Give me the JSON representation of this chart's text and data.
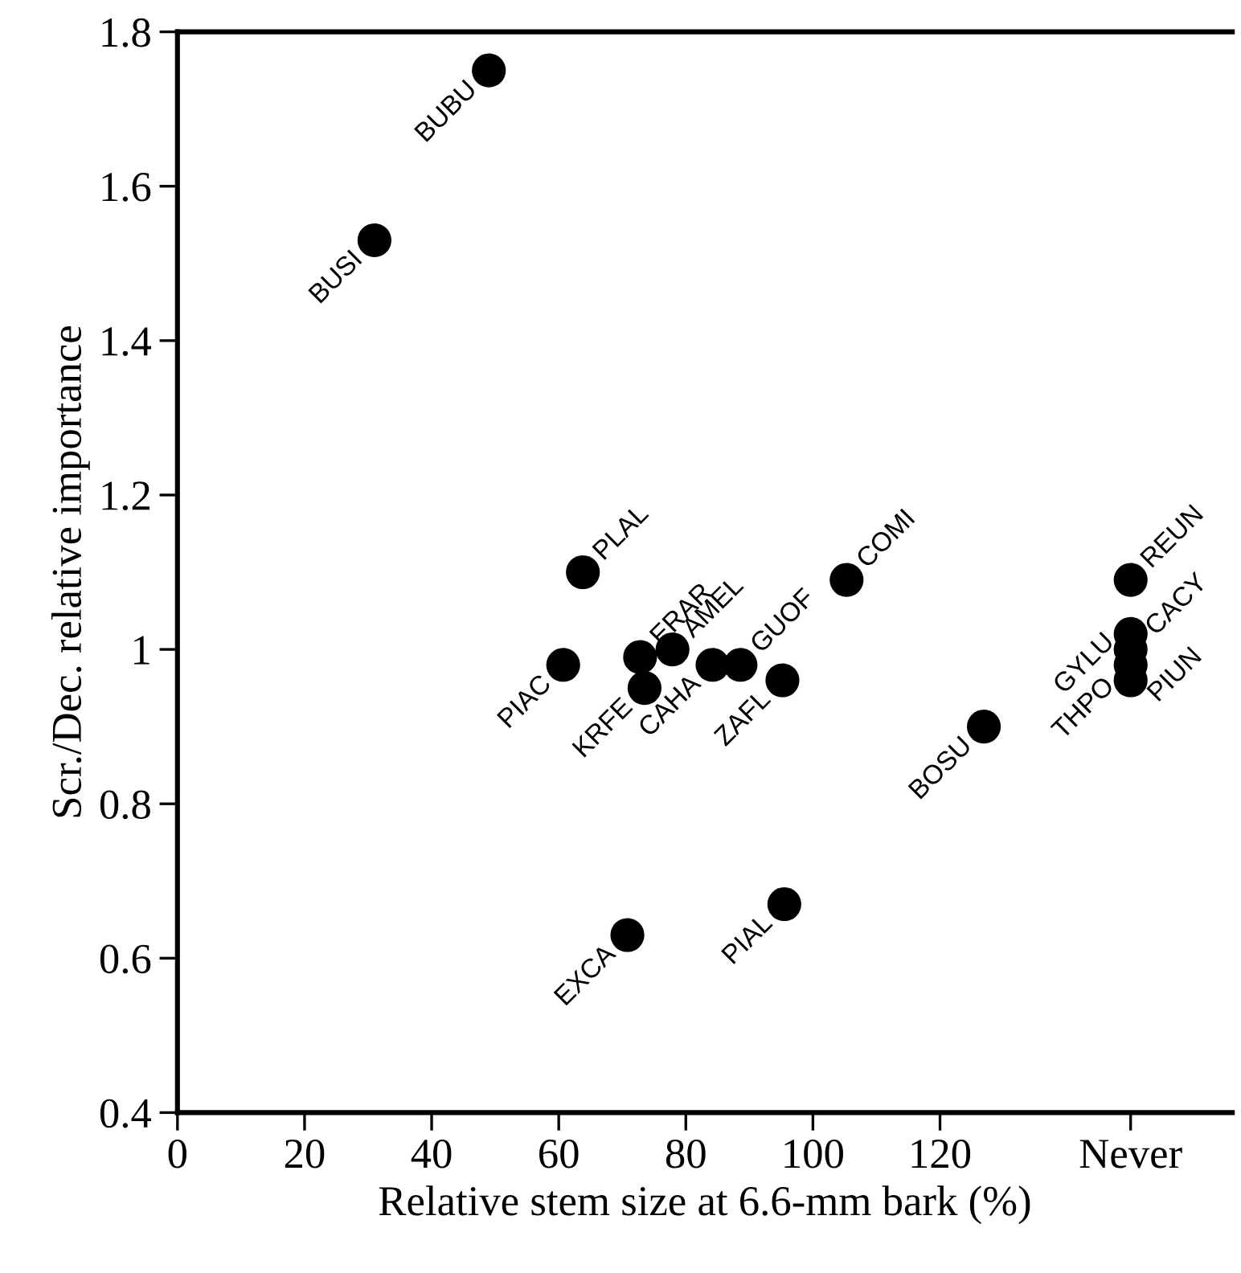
{
  "chart_data": {
    "type": "scatter",
    "xlabel": "Relative stem size at 6.6-mm bark (%)",
    "ylabel": "Scr./Dec. relative importance",
    "x": [
      49,
      31,
      63.8,
      60.7,
      72.8,
      77.9,
      73.5,
      84.2,
      88.6,
      95.2,
      105.3,
      150,
      150,
      150,
      150,
      150,
      126.9,
      70.8,
      95.5
    ],
    "values": [
      1.75,
      1.53,
      1.1,
      0.98,
      0.99,
      1.0,
      0.95,
      0.98,
      0.98,
      0.96,
      1.09,
      1.09,
      1.02,
      1.0,
      0.98,
      0.96,
      0.9,
      0.63,
      0.67
    ],
    "color": "#000000",
    "marker": "circle",
    "grid": false,
    "xlim": [
      0,
      166
    ],
    "xticks": [
      0,
      20,
      40,
      60,
      80,
      100,
      120,
      {
        "value": 150,
        "label": "Never"
      }
    ],
    "ylim": [
      0.4,
      1.8
    ],
    "yticks": [
      0.4,
      0.6,
      0.8,
      1,
      1.2,
      1.4,
      1.6,
      1.8
    ],
    "annotations": [
      {
        "text": "BUBU",
        "x": 49,
        "y": 1.75
      },
      {
        "text": "BUSI",
        "x": 31,
        "y": 1.53
      },
      {
        "text": "PLAL",
        "x": 63.8,
        "y": 1.1
      },
      {
        "text": "PIAC",
        "x": 60.7,
        "y": 0.98
      },
      {
        "text": "ERAR",
        "x": 72.8,
        "y": 0.99
      },
      {
        "text": "AMEL",
        "x": 77.9,
        "y": 1.0
      },
      {
        "text": "KRFE",
        "x": 73.5,
        "y": 0.95
      },
      {
        "text": "CAHA",
        "x": 84.2,
        "y": 0.98
      },
      {
        "text": "GUOF",
        "x": 88.6,
        "y": 0.98
      },
      {
        "text": "ZAFL",
        "x": 95.2,
        "y": 0.96
      },
      {
        "text": "COMI",
        "x": 105.3,
        "y": 1.09
      },
      {
        "text": "REUN",
        "x": 150,
        "y": 1.09
      },
      {
        "text": "GYLU",
        "x": 150,
        "y": 1.02
      },
      {
        "text": "CACY",
        "x": 150,
        "y": 1.0
      },
      {
        "text": "THPO",
        "x": 150,
        "y": 0.98
      },
      {
        "text": "PIUN",
        "x": 150,
        "y": 0.96
      },
      {
        "text": "BOSU",
        "x": 126.9,
        "y": 0.9
      },
      {
        "text": "EXCA",
        "x": 70.8,
        "y": 0.63
      },
      {
        "text": "PIAL",
        "x": 95.5,
        "y": 0.67
      }
    ]
  }
}
